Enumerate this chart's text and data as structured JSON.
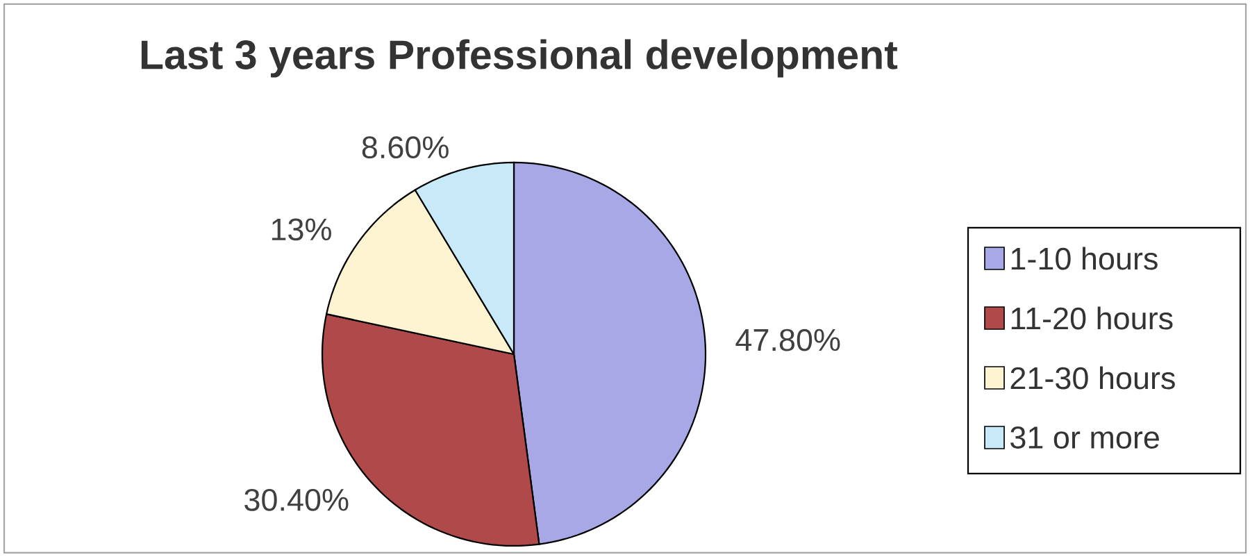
{
  "chart_data": {
    "type": "pie",
    "title": "Last 3 years Professional development",
    "categories": [
      "1-10 hours",
      "11-20 hours",
      "21-30 hours",
      "31 or more"
    ],
    "values": [
      47.8,
      30.4,
      13,
      8.6
    ],
    "value_labels": [
      "47.80%",
      "30.40%",
      "13%",
      "8.60%"
    ],
    "colors": [
      "#a8a8e6",
      "#b04a4a",
      "#fff4d2",
      "#c8eaf8"
    ],
    "legend": "right"
  }
}
